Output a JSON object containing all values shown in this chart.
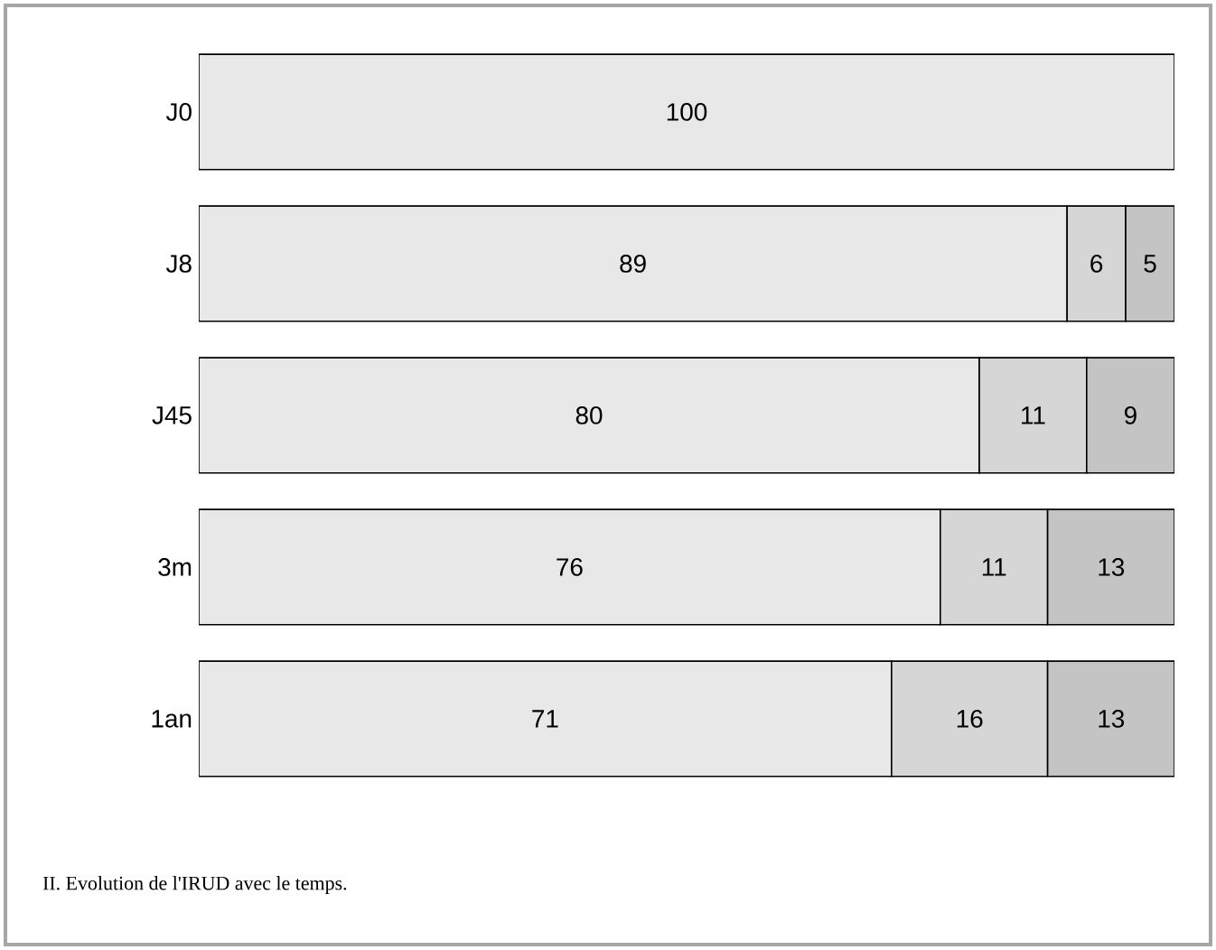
{
  "chart_data": {
    "type": "bar",
    "orientation": "horizontal",
    "stacked": true,
    "categories": [
      "J0",
      "J8",
      "J45",
      "3m",
      "1an"
    ],
    "series": [
      {
        "color": "#e8e8e8",
        "values": [
          100,
          89,
          80,
          76,
          71
        ]
      },
      {
        "color": "#d6d6d6",
        "values": [
          null,
          6,
          11,
          11,
          16
        ]
      },
      {
        "color": "#c4c4c4",
        "values": [
          null,
          5,
          9,
          13,
          13
        ]
      }
    ],
    "data_labels": true,
    "tick_labels": "y",
    "annotations": [
      "II. Evolution de l'IRUD avec le temps."
    ]
  }
}
